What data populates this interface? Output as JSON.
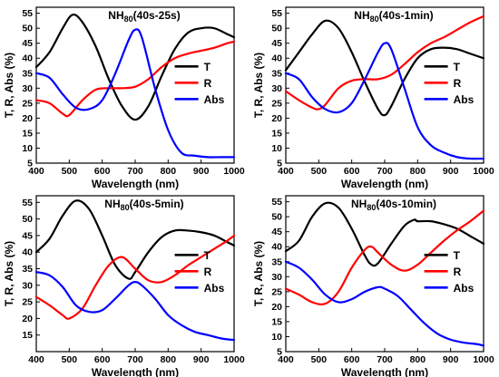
{
  "colors": {
    "T": "#000000",
    "R": "#ff0000",
    "Abs": "#0000ff"
  },
  "chart_data": [
    {
      "type": "line",
      "title": {
        "pre": "NH",
        "sub": "80",
        "post": "(40s-25s)"
      },
      "xlabel": "Wavelength (nm)",
      "ylabel": "T, R, Abs (%)",
      "xlim": [
        400,
        1000
      ],
      "ylim": [
        5,
        57
      ],
      "xticks": [
        "400",
        "500",
        "600",
        "700",
        "800",
        "900",
        "1000"
      ],
      "yticks": [
        "5",
        "10",
        "15",
        "20",
        "25",
        "30",
        "35",
        "40",
        "45",
        "50",
        "55"
      ],
      "legend_position": "right",
      "series": [
        {
          "name": "T",
          "color": "#000000",
          "x": [
            400,
            440,
            480,
            510,
            540,
            580,
            620,
            660,
            700,
            740,
            780,
            820,
            860,
            900,
            940,
            980,
            1000
          ],
          "y": [
            37,
            42,
            50,
            54.5,
            52,
            44,
            33,
            24,
            19.5,
            24,
            34,
            43,
            48.5,
            50,
            50,
            48,
            47
          ]
        },
        {
          "name": "R",
          "color": "#ff0000",
          "x": [
            400,
            440,
            480,
            500,
            540,
            580,
            620,
            660,
            700,
            740,
            780,
            820,
            860,
            900,
            940,
            980,
            1000
          ],
          "y": [
            26,
            25,
            21.5,
            21,
            26,
            29.5,
            30,
            30,
            30.5,
            33,
            37,
            40,
            41.5,
            42.5,
            43.5,
            45,
            45.5
          ]
        },
        {
          "name": "Abs",
          "color": "#0000ff",
          "x": [
            400,
            440,
            480,
            520,
            560,
            600,
            640,
            680,
            700,
            720,
            760,
            800,
            840,
            880,
            920,
            960,
            1000
          ],
          "y": [
            35,
            33.5,
            28,
            23.5,
            23,
            26,
            35,
            46,
            49.5,
            47,
            30,
            16,
            8.5,
            7.5,
            7,
            7,
            7
          ]
        }
      ]
    },
    {
      "type": "line",
      "title": {
        "pre": "NH",
        "sub": "80",
        "post": "(40s-1min)"
      },
      "xlabel": "Wavelength (nm)",
      "ylabel": "T, R, Abs (%)",
      "xlim": [
        400,
        1000
      ],
      "ylim": [
        5,
        57
      ],
      "xticks": [
        "400",
        "500",
        "600",
        "700",
        "800",
        "900",
        "1000"
      ],
      "yticks": [
        "5",
        "10",
        "15",
        "20",
        "25",
        "30",
        "35",
        "40",
        "45",
        "50",
        "55"
      ],
      "legend_position": "right",
      "series": [
        {
          "name": "T",
          "color": "#000000",
          "x": [
            400,
            440,
            480,
            520,
            560,
            600,
            640,
            680,
            700,
            720,
            760,
            800,
            840,
            880,
            920,
            960,
            1000
          ],
          "y": [
            36,
            42,
            48,
            52.5,
            50,
            42,
            32,
            23,
            21,
            24,
            33,
            40,
            43,
            43.5,
            43,
            41.5,
            40
          ]
        },
        {
          "name": "R",
          "color": "#ff0000",
          "x": [
            400,
            440,
            480,
            500,
            520,
            560,
            600,
            640,
            680,
            720,
            760,
            800,
            840,
            880,
            920,
            960,
            1000
          ],
          "y": [
            29,
            26,
            23.5,
            23,
            24.5,
            30,
            32.5,
            33,
            33,
            34.5,
            38,
            42,
            45,
            47,
            49.5,
            52,
            54
          ]
        },
        {
          "name": "Abs",
          "color": "#0000ff",
          "x": [
            400,
            440,
            480,
            520,
            560,
            600,
            640,
            680,
            700,
            720,
            760,
            800,
            840,
            880,
            920,
            960,
            1000
          ],
          "y": [
            35,
            33,
            27,
            23,
            22,
            25,
            33,
            42,
            45,
            43,
            30,
            17,
            11,
            8.5,
            7,
            6.5,
            6.5
          ]
        }
      ]
    },
    {
      "type": "line",
      "title": {
        "pre": "NH",
        "sub": "80",
        "post": "(40s-5min)"
      },
      "xlabel": "Wavelength (nm)",
      "ylabel": "T, R, Abs (%)",
      "xlim": [
        400,
        1000
      ],
      "ylim": [
        10,
        57
      ],
      "xticks": [
        "400",
        "500",
        "600",
        "700",
        "800",
        "900",
        "1000"
      ],
      "yticks": [
        "15",
        "20",
        "25",
        "30",
        "35",
        "40",
        "45",
        "50",
        "55"
      ],
      "legend_position": "right",
      "series": [
        {
          "name": "T",
          "color": "#000000",
          "x": [
            400,
            440,
            480,
            520,
            560,
            600,
            640,
            680,
            700,
            740,
            780,
            820,
            860,
            900,
            940,
            980,
            1000
          ],
          "y": [
            40,
            44,
            51,
            55.5,
            53,
            45,
            36,
            32,
            34,
            40,
            44.5,
            46.5,
            46.5,
            46,
            45,
            43,
            42
          ]
        },
        {
          "name": "R",
          "color": "#ff0000",
          "x": [
            400,
            440,
            480,
            500,
            540,
            580,
            620,
            660,
            700,
            740,
            780,
            820,
            860,
            900,
            940,
            980,
            1000
          ],
          "y": [
            26.5,
            24,
            21,
            20,
            23,
            30,
            36,
            38.5,
            35,
            31.5,
            31,
            33,
            36,
            38.5,
            41,
            43.5,
            45
          ]
        },
        {
          "name": "Abs",
          "color": "#0000ff",
          "x": [
            400,
            440,
            480,
            520,
            560,
            600,
            640,
            680,
            700,
            720,
            760,
            800,
            840,
            880,
            920,
            960,
            1000
          ],
          "y": [
            34,
            33,
            29.5,
            24,
            22,
            22.5,
            26,
            30,
            31,
            30,
            26,
            21,
            18,
            16,
            15,
            14,
            13.5
          ]
        }
      ]
    },
    {
      "type": "line",
      "title": {
        "pre": "NH",
        "sub": "80",
        "post": "(40s-10min)"
      },
      "xlabel": "Wavelength (nm)",
      "ylabel": "T, R, Abs (%)",
      "xlim": [
        400,
        1000
      ],
      "ylim": [
        5,
        57
      ],
      "xticks": [
        "400",
        "500",
        "600",
        "700",
        "800",
        "900",
        "1000"
      ],
      "yticks": [
        "5",
        "10",
        "15",
        "20",
        "25",
        "30",
        "35",
        "40",
        "45",
        "50",
        "55"
      ],
      "legend_position": "right",
      "series": [
        {
          "name": "T",
          "color": "#000000",
          "x": [
            400,
            440,
            480,
            520,
            560,
            600,
            640,
            660,
            680,
            720,
            760,
            790,
            800,
            840,
            880,
            920,
            960,
            1000
          ],
          "y": [
            38.5,
            42,
            50,
            54.5,
            53,
            46,
            37,
            34,
            34.5,
            41,
            47,
            49,
            48.5,
            48.5,
            47.5,
            46,
            43.5,
            41
          ]
        },
        {
          "name": "R",
          "color": "#ff0000",
          "x": [
            400,
            440,
            480,
            520,
            560,
            600,
            640,
            660,
            680,
            720,
            760,
            800,
            840,
            880,
            920,
            960,
            1000
          ],
          "y": [
            26,
            24,
            21.5,
            21,
            25,
            33,
            39,
            40,
            38,
            34,
            32,
            34,
            38,
            42,
            45.5,
            48.5,
            52
          ]
        },
        {
          "name": "Abs",
          "color": "#0000ff",
          "x": [
            400,
            440,
            480,
            520,
            560,
            600,
            640,
            680,
            700,
            740,
            780,
            820,
            860,
            900,
            940,
            980,
            1000
          ],
          "y": [
            35,
            33,
            29,
            24,
            21.5,
            22.5,
            25,
            26.5,
            26,
            23.5,
            19,
            14.5,
            11,
            9,
            8,
            7.5,
            7
          ]
        }
      ]
    }
  ]
}
